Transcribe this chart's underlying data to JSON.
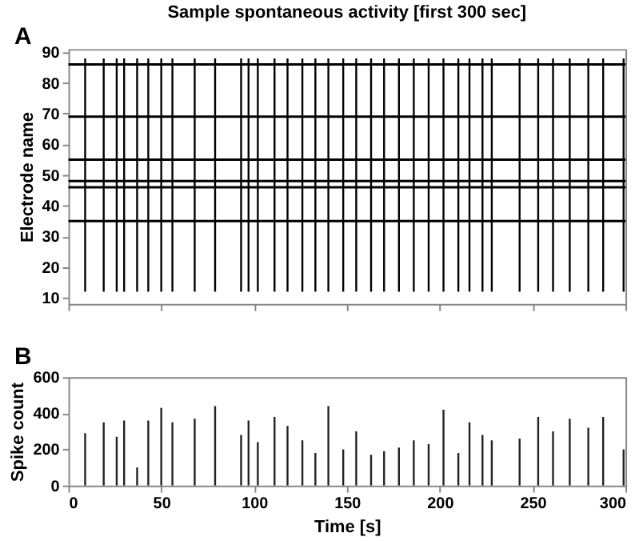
{
  "chart_data": [
    {
      "type": "line",
      "title": "Sample spontaneous activity [first 300 sec]",
      "ylabel": "Electrode name",
      "annotations": [
        "A"
      ],
      "xlim": [
        0,
        300
      ],
      "xticks": [
        {
          "value": 0,
          "label": null
        },
        {
          "value": 50,
          "label": null
        },
        {
          "value": 100,
          "label": null
        },
        {
          "value": 150,
          "label": null
        },
        {
          "value": 200,
          "label": null
        },
        {
          "value": 250,
          "label": null
        },
        {
          "value": 300,
          "label": null
        }
      ],
      "ylim": [
        8,
        91
      ],
      "yticks": [
        10,
        20,
        30,
        40,
        50,
        60,
        70,
        80,
        90
      ],
      "tick_labels": "y",
      "marker": "none",
      "line_style": "solid",
      "series": [
        {
          "color": "#000000",
          "x": [
            0,
            300
          ],
          "values": [
            35,
            35
          ]
        },
        {
          "color": "#000000",
          "x": [
            0,
            300
          ],
          "values": [
            46,
            46
          ]
        },
        {
          "color": "#000000",
          "x": [
            0,
            300
          ],
          "values": [
            48,
            48
          ]
        },
        {
          "color": "#000000",
          "x": [
            0,
            300
          ],
          "values": [
            55,
            55
          ]
        },
        {
          "color": "#000000",
          "x": [
            0,
            300
          ],
          "values": [
            69,
            69
          ]
        },
        {
          "color": "#000000",
          "x": [
            0,
            300
          ],
          "values": [
            86,
            86
          ]
        },
        {
          "type": "bar",
          "color": "#000000",
          "x": [
            9,
            19,
            26,
            30,
            37,
            43,
            50,
            56,
            68,
            79,
            93,
            97,
            102,
            111,
            118,
            126,
            133,
            140,
            148,
            155,
            163,
            170,
            178,
            186,
            194,
            202,
            210,
            216,
            223,
            228,
            243,
            253,
            261,
            270,
            280,
            288,
            299
          ],
          "base": [
            12,
            12,
            12,
            12,
            12,
            12,
            12,
            12,
            12,
            12,
            12,
            12,
            12,
            12,
            12,
            12,
            12,
            12,
            12,
            12,
            12,
            12,
            12,
            12,
            12,
            12,
            12,
            12,
            12,
            12,
            12,
            12,
            12,
            12,
            12,
            12,
            12
          ],
          "values": [
            76,
            76,
            76,
            76,
            76,
            76,
            76,
            76,
            76,
            76,
            76,
            76,
            76,
            76,
            76,
            76,
            76,
            76,
            76,
            76,
            76,
            76,
            76,
            76,
            76,
            76,
            76,
            76,
            76,
            76,
            76,
            76,
            76,
            76,
            76,
            76,
            76
          ]
        }
      ]
    },
    {
      "type": "bar",
      "xlabel": "Time [s]",
      "ylabel": "Spike count",
      "annotations": [
        "B"
      ],
      "xlim": [
        0,
        300
      ],
      "xticks": [
        0,
        50,
        100,
        150,
        200,
        250,
        300
      ],
      "ylim": [
        0,
        600
      ],
      "yticks": [
        0,
        200,
        400,
        600
      ],
      "x": [
        9,
        19,
        26,
        30,
        37,
        43,
        50,
        56,
        68,
        79,
        93,
        97,
        102,
        111,
        118,
        126,
        133,
        140,
        148,
        155,
        163,
        170,
        178,
        186,
        194,
        202,
        210,
        216,
        223,
        228,
        243,
        253,
        261,
        270,
        280,
        288,
        299
      ],
      "values": [
        290,
        350,
        270,
        360,
        100,
        360,
        430,
        350,
        370,
        440,
        280,
        360,
        240,
        380,
        330,
        250,
        180,
        440,
        200,
        300,
        170,
        190,
        210,
        250,
        230,
        420,
        180,
        350,
        280,
        250,
        260,
        380,
        300,
        370,
        320,
        380,
        200
      ],
      "color": "#222222"
    }
  ]
}
